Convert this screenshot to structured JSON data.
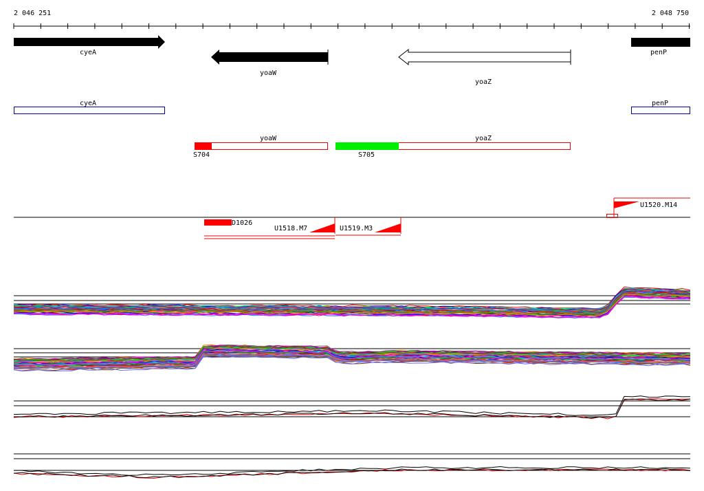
{
  "ruler": {
    "start": "2 046 251",
    "end": "2 048 750"
  },
  "genes": [
    {
      "label": "cyeA"
    },
    {
      "label": "yoaW"
    },
    {
      "label": "yoaZ"
    },
    {
      "label": "penP"
    }
  ],
  "cds": [
    {
      "label": "cyeA"
    },
    {
      "label": "penP"
    }
  ],
  "transcripts": [
    {
      "label": "yoaW",
      "site": "S704"
    },
    {
      "label": "yoaZ",
      "site": "S705"
    }
  ],
  "segments": [
    {
      "label": "U1520.M14"
    },
    {
      "label": "D1026"
    },
    {
      "label": "U1518.M7"
    },
    {
      "label": "U1519.M3"
    }
  ]
}
